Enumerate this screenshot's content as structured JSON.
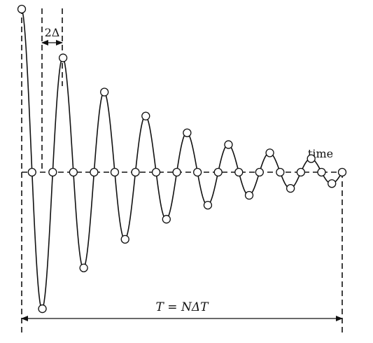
{
  "labels": {
    "sample_spacing": "2Δ",
    "axis": "time",
    "total_length": "T = NΔT"
  },
  "signal": {
    "description_of_shape": "damped oscillation",
    "sample_count": 32,
    "initial_amplitude": 1.0,
    "decay_per_sample": 0.915,
    "samples_per_half_cycle": 2
  },
  "colors": {
    "line": "#111111",
    "marker_fill": "#ffffff"
  }
}
